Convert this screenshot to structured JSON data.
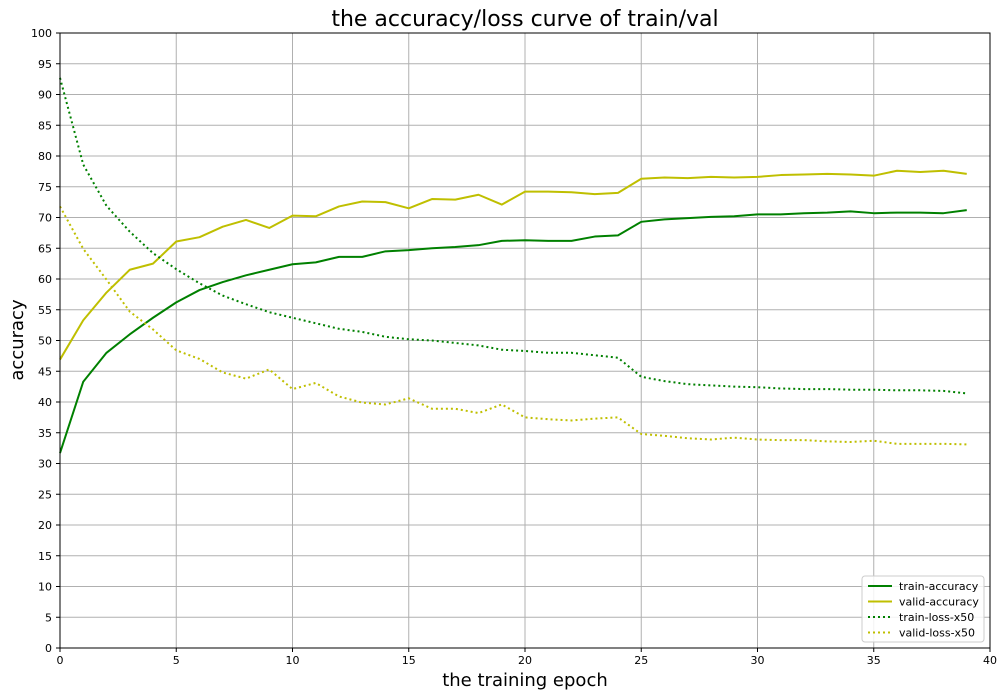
{
  "chart_data": {
    "type": "line",
    "title": "the accuracy/loss curve of train/val",
    "xlabel": "the training epoch",
    "ylabel": "accuracy",
    "xlim": [
      0,
      40
    ],
    "ylim": [
      0,
      100
    ],
    "xticks": [
      0,
      5,
      10,
      15,
      20,
      25,
      30,
      35,
      40
    ],
    "yticks": [
      0,
      5,
      10,
      15,
      20,
      25,
      30,
      35,
      40,
      45,
      50,
      55,
      60,
      65,
      70,
      75,
      80,
      85,
      90,
      95,
      100
    ],
    "grid": true,
    "legend_position": "lower-right",
    "x": [
      0,
      1,
      2,
      3,
      4,
      5,
      6,
      7,
      8,
      9,
      10,
      11,
      12,
      13,
      14,
      15,
      16,
      17,
      18,
      19,
      20,
      21,
      22,
      23,
      24,
      25,
      26,
      27,
      28,
      29,
      30,
      31,
      32,
      33,
      34,
      35,
      36,
      37,
      38,
      39
    ],
    "series": [
      {
        "name": "train-accuracy",
        "color": "#008000",
        "style": "solid",
        "values": [
          31.7,
          43.3,
          48.0,
          51.0,
          53.7,
          56.2,
          58.2,
          59.5,
          60.6,
          61.5,
          62.4,
          62.7,
          63.6,
          63.6,
          64.5,
          64.7,
          65.0,
          65.2,
          65.5,
          66.2,
          66.3,
          66.2,
          66.2,
          66.9,
          67.1,
          69.3,
          69.7,
          69.9,
          70.1,
          70.2,
          70.5,
          70.5,
          70.7,
          70.8,
          71.0,
          70.7,
          70.8,
          70.8,
          70.7,
          71.2
        ]
      },
      {
        "name": "valid-accuracy",
        "color": "#bfbf00",
        "style": "solid",
        "values": [
          46.9,
          53.3,
          57.8,
          61.5,
          62.5,
          66.1,
          66.8,
          68.5,
          69.6,
          68.3,
          70.3,
          70.2,
          71.8,
          72.6,
          72.5,
          71.5,
          73.0,
          72.9,
          73.7,
          72.1,
          74.2,
          74.2,
          74.1,
          73.8,
          74.0,
          76.3,
          76.5,
          76.4,
          76.6,
          76.5,
          76.6,
          76.9,
          77.0,
          77.1,
          77.0,
          76.8,
          77.6,
          77.4,
          77.6,
          77.1
        ]
      },
      {
        "name": "train-loss-x50",
        "color": "#008000",
        "style": "dotted",
        "values": [
          92.7,
          78.6,
          71.9,
          67.7,
          64.2,
          61.6,
          59.3,
          57.3,
          55.9,
          54.6,
          53.7,
          52.8,
          51.9,
          51.4,
          50.6,
          50.2,
          50.0,
          49.6,
          49.2,
          48.5,
          48.3,
          48.0,
          48.0,
          47.6,
          47.2,
          44.1,
          43.4,
          42.9,
          42.7,
          42.5,
          42.4,
          42.2,
          42.1,
          42.1,
          42.0,
          42.0,
          41.9,
          41.9,
          41.8,
          41.4
        ]
      },
      {
        "name": "valid-loss-x50",
        "color": "#bfbf00",
        "style": "dotted",
        "values": [
          71.8,
          64.9,
          59.9,
          54.7,
          51.8,
          48.4,
          47.0,
          44.8,
          43.8,
          45.3,
          42.1,
          43.1,
          40.9,
          39.9,
          39.6,
          40.6,
          38.9,
          38.9,
          38.2,
          39.6,
          37.5,
          37.2,
          37.0,
          37.3,
          37.5,
          34.8,
          34.5,
          34.1,
          33.9,
          34.2,
          33.9,
          33.8,
          33.8,
          33.6,
          33.5,
          33.7,
          33.2,
          33.2,
          33.2,
          33.1
        ]
      }
    ]
  }
}
